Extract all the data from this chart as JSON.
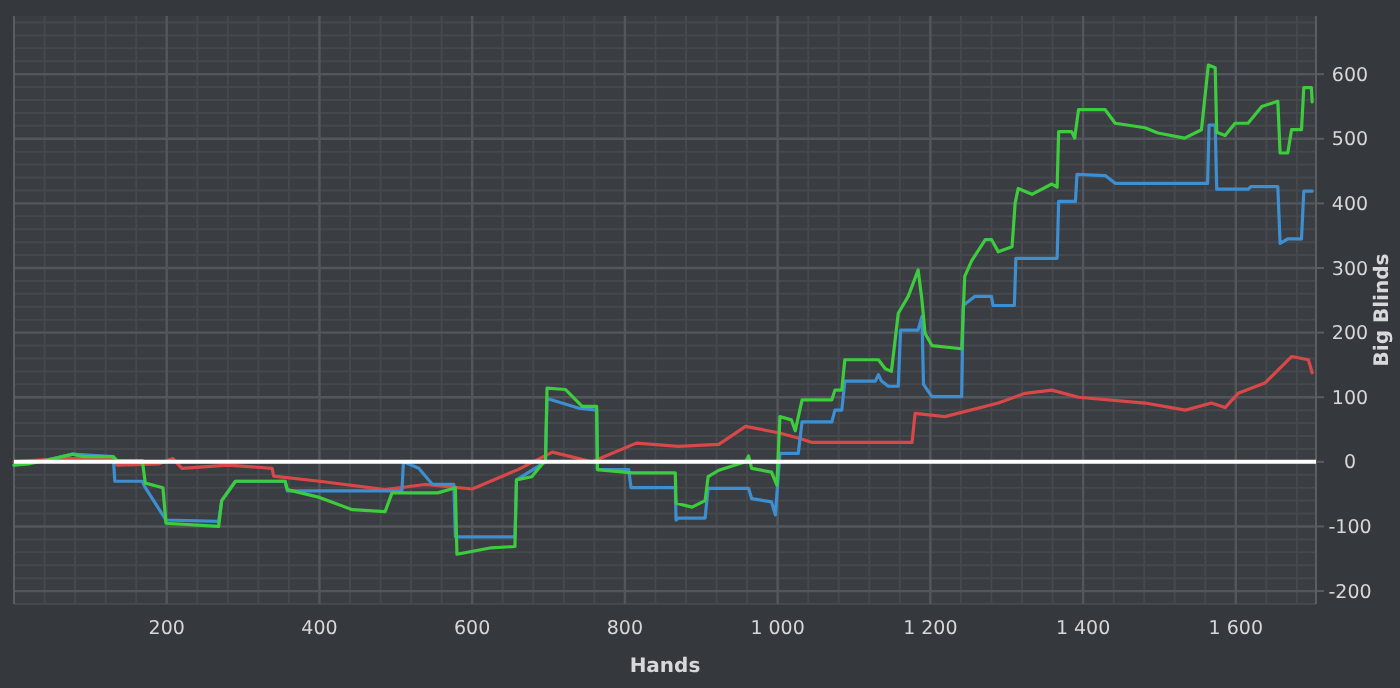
{
  "chart_data": {
    "type": "line",
    "xlabel": "Hands",
    "ylabel": "Big Blinds",
    "xlim": [
      0,
      1705
    ],
    "ylim": [
      -220,
      690
    ],
    "xticks": [
      200,
      400,
      600,
      800,
      {
        "value": 1000,
        "label": "1 000"
      },
      {
        "value": 1200,
        "label": "1 200"
      },
      {
        "value": 1400,
        "label": "1 400"
      },
      {
        "value": 1600,
        "label": "1 600"
      }
    ],
    "yticks": [
      -200,
      -100,
      0,
      100,
      200,
      300,
      400,
      500,
      600
    ],
    "grid": true,
    "marker": "none",
    "line_style": "solid",
    "ref_lines": [
      {
        "axis": "y",
        "value": 0,
        "label": null,
        "color": "#ffffff"
      }
    ],
    "series": [
      {
        "color": "#d94848",
        "x": [
          0,
          60,
          130,
          135,
          190,
          208,
          220,
          280,
          338,
          340,
          400,
          486,
          538,
          600,
          660,
          705,
          757,
          815,
          870,
          923,
          958,
          1001,
          1027,
          1045,
          1176,
          1180,
          1219,
          1289,
          1324,
          1359,
          1394,
          1481,
          1534,
          1568,
          1586,
          1603,
          1638,
          1673,
          1695,
          1700
        ],
        "values": [
          0,
          5,
          5,
          -5,
          -3,
          5,
          -10,
          -5,
          -10,
          -22,
          -30,
          -43,
          -35,
          -42,
          -12,
          15,
          0,
          29,
          24,
          27,
          55,
          45,
          37,
          30,
          30,
          75,
          70,
          91,
          106,
          111,
          100,
          91,
          80,
          91,
          84,
          106,
          122,
          163,
          158,
          138
        ]
      },
      {
        "color": "#3d8fd1",
        "x": [
          0,
          45,
          77,
          130,
          132,
          168,
          172,
          199,
          268,
          272,
          290,
          355,
          358,
          508,
          510,
          530,
          548,
          576,
          578,
          656,
          658,
          696,
          698,
          740,
          763,
          764,
          805,
          808,
          866,
          867,
          870,
          905,
          909,
          962,
          966,
          992,
          997,
          1003,
          1027,
          1032,
          1071,
          1075,
          1084,
          1088,
          1128,
          1132,
          1136,
          1145,
          1158,
          1161,
          1184,
          1189,
          1191,
          1202,
          1241,
          1243,
          1258,
          1280,
          1282,
          1310,
          1312,
          1366,
          1368,
          1390,
          1392,
          1429,
          1442,
          1563,
          1565,
          1573,
          1575,
          1616,
          1620,
          1655,
          1658,
          1668,
          1686,
          1689,
          1700
        ],
        "values": [
          -5,
          3,
          12,
          8,
          -30,
          -30,
          -40,
          -90,
          -92,
          -60,
          -30,
          -30,
          -45,
          -45,
          0,
          -10,
          -35,
          -35,
          -116,
          -116,
          -28,
          0,
          98,
          83,
          80,
          -12,
          -12,
          -40,
          -40,
          -90,
          -87,
          -87,
          -41,
          -41,
          -57,
          -62,
          -82,
          13,
          13,
          62,
          62,
          80,
          80,
          125,
          125,
          135,
          125,
          117,
          117,
          204,
          204,
          225,
          120,
          101,
          101,
          242,
          256,
          256,
          242,
          242,
          315,
          315,
          403,
          403,
          445,
          443,
          431,
          431,
          521,
          521,
          422,
          422,
          426,
          426,
          338,
          345,
          345,
          419,
          419
        ]
      },
      {
        "color": "#3dcc3d",
        "x": [
          0,
          20,
          45,
          77,
          90,
          130,
          135,
          168,
          172,
          195,
          199,
          268,
          272,
          290,
          355,
          358,
          400,
          443,
          486,
          495,
          555,
          578,
          580,
          625,
          656,
          658,
          678,
          696,
          698,
          722,
          744,
          763,
          764,
          809,
          866,
          867,
          888,
          905,
          909,
          923,
          958,
          962,
          966,
          992,
          999,
          1003,
          1018,
          1023,
          1032,
          1071,
          1075,
          1084,
          1088,
          1132,
          1141,
          1149,
          1158,
          1171,
          1184,
          1189,
          1193,
          1202,
          1241,
          1245,
          1254,
          1272,
          1280,
          1289,
          1307,
          1311,
          1315,
          1333,
          1359,
          1366,
          1368,
          1385,
          1389,
          1394,
          1429,
          1442,
          1481,
          1498,
          1533,
          1555,
          1564,
          1573,
          1575,
          1586,
          1599,
          1616,
          1634,
          1655,
          1658,
          1668,
          1673,
          1686,
          1689,
          1699,
          1700
        ],
        "values": [
          -5,
          -3,
          3,
          12,
          8,
          8,
          2,
          2,
          -33,
          -40,
          -95,
          -100,
          -60,
          -30,
          -30,
          -43,
          -55,
          -74,
          -77,
          -48,
          -48,
          -40,
          -143,
          -133,
          -131,
          -28,
          -23,
          3,
          114,
          112,
          86,
          86,
          -12,
          -17,
          -17,
          -64,
          -70,
          -60,
          -23,
          -13,
          0,
          9,
          -10,
          -16,
          -36,
          70,
          65,
          48,
          96,
          96,
          111,
          111,
          158,
          158,
          144,
          140,
          230,
          256,
          297,
          250,
          199,
          180,
          175,
          287,
          311,
          344,
          344,
          325,
          333,
          400,
          423,
          414,
          430,
          425,
          511,
          511,
          501,
          545,
          545,
          524,
          517,
          509,
          501,
          514,
          614,
          610,
          510,
          505,
          524,
          524,
          550,
          558,
          478,
          478,
          514,
          514,
          579,
          579,
          557
        ]
      }
    ]
  }
}
